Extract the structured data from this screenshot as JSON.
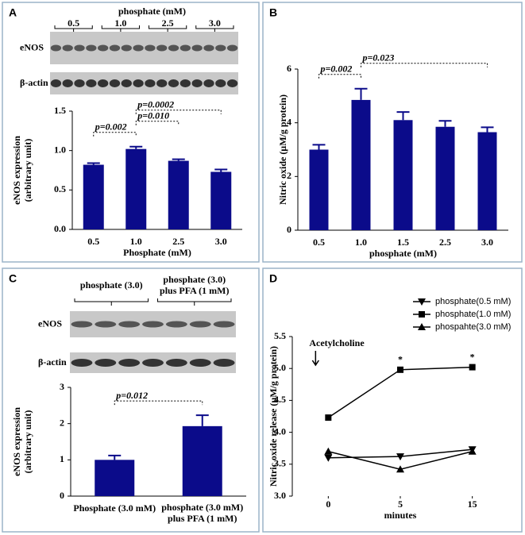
{
  "chart_data": [
    {
      "type": "bar",
      "panel_label": "A",
      "blot": {
        "header": "phosphate (mM)",
        "lanes": [
          "0.5",
          "1.0",
          "2.5",
          "3.0"
        ],
        "rows": [
          "eNOS",
          "β-actin"
        ]
      },
      "categories": [
        "0.5",
        "1.0",
        "2.5",
        "3.0"
      ],
      "values": [
        0.82,
        1.02,
        0.87,
        0.73
      ],
      "errors": [
        0.02,
        0.03,
        0.02,
        0.03
      ],
      "color": "#0b0b8a",
      "xlabel": "Phosphate (mM)",
      "ylabel": "eNOS expression\n(arbitrary unit)",
      "ylim": [
        0,
        1.5
      ],
      "yticks": [
        {
          "value": 0,
          "label": "0.0"
        },
        {
          "value": 0.5,
          "label": "0.5"
        },
        {
          "value": 1,
          "label": "1.0"
        },
        {
          "value": 1.5,
          "label": "1.5"
        }
      ],
      "annotations": [
        {
          "text": "p=0.002",
          "from": 0,
          "to": 1
        },
        {
          "text": "p=0.010",
          "from": 1,
          "to": 2
        },
        {
          "text": "p=0.0002",
          "from": 1,
          "to": 3
        }
      ]
    },
    {
      "type": "bar",
      "panel_label": "B",
      "categories": [
        "0.5",
        "1.0",
        "1.5",
        "2.5",
        "3.0"
      ],
      "values": [
        3.0,
        4.85,
        4.1,
        3.85,
        3.65
      ],
      "errors": [
        0.18,
        0.42,
        0.3,
        0.22,
        0.18
      ],
      "color": "#0b0b8a",
      "xlabel": "phosphate (mM)",
      "ylabel": "Nitric oxide (µM/g protein)",
      "ylim": [
        0,
        6
      ],
      "yticks": [
        0,
        2,
        4,
        6
      ],
      "annotations": [
        {
          "text": "p=0.002",
          "from": 0,
          "to": 1
        },
        {
          "text": "p=0.023",
          "from": 1,
          "to": 4
        }
      ]
    },
    {
      "type": "bar",
      "panel_label": "C",
      "blot": {
        "lanes": [
          "phosphate (3.0)",
          "phosphate (3.0)\nplus PFA (1 mM)"
        ],
        "rows": [
          "eNOS",
          "β-actin"
        ]
      },
      "categories": [
        "Phosphate (3.0 mM)",
        "phosphate (3.0 mM)\nplus PFA (1 mM)"
      ],
      "values": [
        1.0,
        1.93
      ],
      "errors": [
        0.12,
        0.3
      ],
      "color": "#0b0b8a",
      "ylabel": "eNOS expression\n(arbitrary unit)",
      "ylim": [
        0,
        3
      ],
      "yticks": [
        0,
        1,
        2,
        3
      ],
      "annotations": [
        {
          "text": "p=0.012",
          "from": 0,
          "to": 1
        }
      ]
    },
    {
      "type": "line",
      "panel_label": "D",
      "categories": [
        "0",
        "5",
        "15"
      ],
      "xlabel": "minutes",
      "ylabel": "Nitric oxide release (µM/g protein)",
      "ylim": [
        3,
        5.5
      ],
      "yticks": [
        {
          "value": 3,
          "label": "3.0"
        },
        {
          "value": 3.5,
          "label": "3.5"
        },
        {
          "value": 4,
          "label": "4.0"
        },
        {
          "value": 4.5,
          "label": "4.5"
        },
        {
          "value": 5,
          "label": "5.0"
        },
        {
          "value": 5.5,
          "label": "5.5"
        }
      ],
      "series": [
        {
          "name": "phosphate(0.5 mM)",
          "color": "#000000",
          "marker": "triangle-down",
          "values": [
            3.6,
            3.62,
            3.73
          ]
        },
        {
          "name": "phosphate(1.0 mM)",
          "color": "#000000",
          "marker": "square",
          "values": [
            4.23,
            4.98,
            5.02
          ]
        },
        {
          "name": "phospahte(3.0 mM)",
          "color": "#000000",
          "marker": "triangle-up",
          "values": [
            3.7,
            3.42,
            3.7
          ]
        }
      ],
      "annotations": [
        {
          "text": "Acetylcholine",
          "category": 0
        },
        {
          "text": "*",
          "category": 1
        },
        {
          "text": "*",
          "category": 2
        }
      ]
    }
  ]
}
